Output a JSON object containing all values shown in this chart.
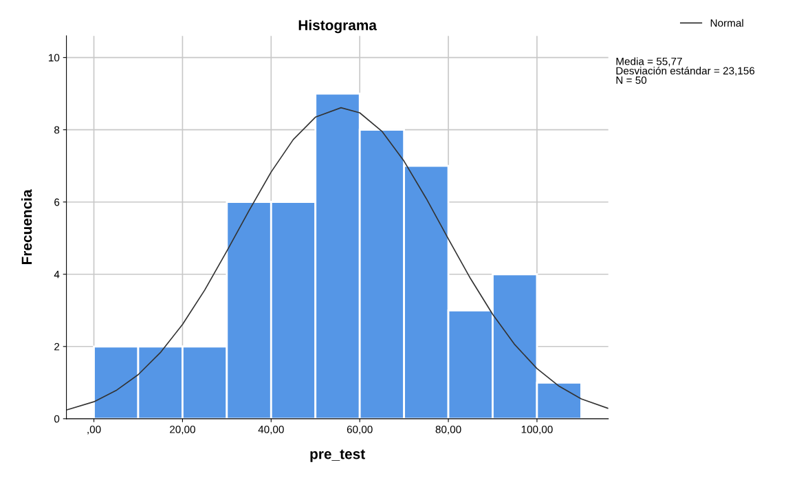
{
  "chart_data": {
    "type": "histogram",
    "title": "Histograma",
    "xlabel": "pre_test",
    "ylabel": "Frecuencia",
    "series": [
      {
        "color": "#5596e6",
        "bins": [
          0,
          10,
          20,
          30,
          40,
          50,
          60,
          70,
          80,
          90,
          100,
          110
        ],
        "values": [
          2,
          2,
          2,
          6,
          6,
          9,
          8,
          7,
          3,
          4,
          1
        ]
      },
      {
        "type": "line",
        "name": "Normal",
        "color": "#333333",
        "x": [
          -6,
          0,
          5,
          10,
          15,
          20,
          25,
          30,
          35,
          40,
          45,
          50,
          55.77,
          60,
          65,
          70,
          75,
          80,
          85,
          90,
          95,
          100,
          105,
          110,
          116
        ],
        "values": [
          0.25,
          0.47,
          0.78,
          1.22,
          1.83,
          2.61,
          3.56,
          4.64,
          5.76,
          6.83,
          7.73,
          8.35,
          8.61,
          8.47,
          7.96,
          7.13,
          6.1,
          4.98,
          3.88,
          2.89,
          2.05,
          1.39,
          0.9,
          0.55,
          0.29
        ]
      }
    ],
    "xlim": [
      -6.2,
      116.1
    ],
    "ylim": [
      0,
      10.6
    ],
    "xticks": [
      {
        "value": 0,
        "label": ",00"
      },
      {
        "value": 20,
        "label": "20,00"
      },
      {
        "value": 40,
        "label": "40,00"
      },
      {
        "value": 60,
        "label": "60,00"
      },
      {
        "value": 80,
        "label": "80,00"
      },
      {
        "value": 100,
        "label": "100,00"
      }
    ],
    "yticks": [
      0,
      2,
      4,
      6,
      8,
      10
    ],
    "grid": true,
    "legend": "top right",
    "marker": "none",
    "line_style": "solid",
    "annotations": [
      "Media = 55,77\nDesviación estándar = 23,156\nN = 50"
    ]
  }
}
